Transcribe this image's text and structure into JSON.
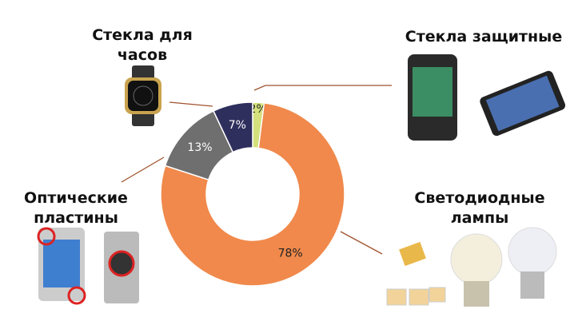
{
  "chart_data": {
    "type": "pie",
    "categories": [
      "Стекла защитные",
      "Светодиодные лампы",
      "Оптические пластины",
      "Стекла для часов"
    ],
    "values": [
      2,
      78,
      13,
      7
    ],
    "value_labels": [
      "2%",
      "78%",
      "13%",
      "7%"
    ],
    "colors": [
      "#d4e07c",
      "#f0894b",
      "#6e6f6e",
      "#2f2f5e"
    ]
  }
}
